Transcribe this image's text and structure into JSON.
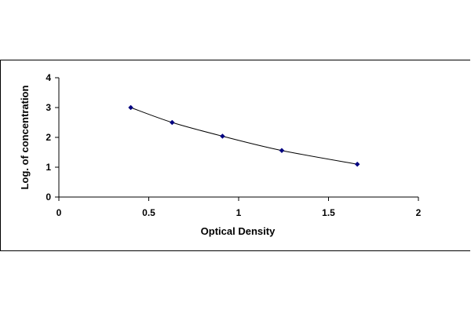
{
  "chart_data": {
    "type": "scatter",
    "title": "",
    "xlabel": "Optical Density",
    "ylabel": "Log. of concentration",
    "xlim": [
      0,
      2
    ],
    "ylim": [
      0,
      4
    ],
    "x_ticks": [
      0,
      0.5,
      1,
      1.5,
      2
    ],
    "x_tick_labels": [
      "0",
      "0.5",
      "1",
      "1.5",
      "2"
    ],
    "y_ticks": [
      0,
      1,
      2,
      3,
      4
    ],
    "y_tick_labels": [
      "0",
      "1",
      "2",
      "3",
      "4"
    ],
    "grid": false,
    "legend": "none",
    "series": [
      {
        "x": [
          0.4,
          0.63,
          0.91,
          1.24,
          1.66
        ],
        "y": [
          3.0,
          2.5,
          2.04,
          1.56,
          1.1
        ],
        "marker": "diamond",
        "color": "#000080",
        "trendline": "smooth"
      }
    ]
  }
}
